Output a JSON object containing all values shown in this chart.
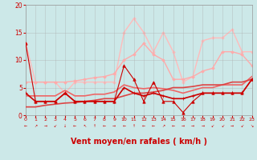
{
  "bg_color": "#cce8e8",
  "grid_color": "#aaaaaa",
  "xlabel": "Vent moyen/en rafales ( km/h )",
  "xlabel_color": "#cc0000",
  "xlabel_fontsize": 7,
  "ytick_color": "#cc0000",
  "xtick_color": "#cc0000",
  "xlim": [
    0,
    23
  ],
  "ylim": [
    0,
    20
  ],
  "yticks": [
    0,
    5,
    10,
    15,
    20
  ],
  "xticks": [
    0,
    1,
    2,
    3,
    4,
    5,
    6,
    7,
    8,
    9,
    10,
    11,
    12,
    13,
    14,
    15,
    16,
    17,
    18,
    19,
    20,
    21,
    22,
    23
  ],
  "lines": [
    {
      "comment": "dark red jagged line with triangle markers - avg wind speed",
      "x": [
        0,
        1,
        2,
        3,
        4,
        5,
        6,
        7,
        8,
        9,
        10,
        11,
        12,
        13,
        14,
        15,
        16,
        17,
        18,
        19,
        20,
        21,
        22,
        23
      ],
      "y": [
        13,
        2.5,
        2.5,
        2.5,
        4,
        2.5,
        2.5,
        2.5,
        2.5,
        2.5,
        9,
        6.5,
        2.5,
        6,
        2.5,
        2.5,
        0.5,
        2.5,
        4,
        4,
        4,
        4,
        4,
        6.5
      ],
      "color": "#cc0000",
      "lw": 0.8,
      "marker": "^",
      "ms": 2.5,
      "zorder": 6
    },
    {
      "comment": "dark red smoother with cross markers",
      "x": [
        0,
        1,
        2,
        3,
        4,
        5,
        6,
        7,
        8,
        9,
        10,
        11,
        12,
        13,
        14,
        15,
        16,
        17,
        18,
        19,
        20,
        21,
        22,
        23
      ],
      "y": [
        4,
        2.5,
        2.5,
        2.5,
        4,
        2.5,
        2.5,
        2.5,
        2.5,
        2.5,
        5,
        4,
        3.5,
        4,
        3.5,
        3,
        3,
        3.5,
        4,
        4,
        4,
        4,
        4,
        6.5
      ],
      "color": "#cc0000",
      "lw": 1.2,
      "marker": "+",
      "ms": 3,
      "zorder": 5
    },
    {
      "comment": "medium red diagonal trend line - no marker",
      "x": [
        0,
        1,
        2,
        3,
        4,
        5,
        6,
        7,
        8,
        9,
        10,
        11,
        12,
        13,
        14,
        15,
        16,
        17,
        18,
        19,
        20,
        21,
        22,
        23
      ],
      "y": [
        1.5,
        1.5,
        1.8,
        2.0,
        2.2,
        2.3,
        2.5,
        2.7,
        3.0,
        3.0,
        3.5,
        4.0,
        4.0,
        4.2,
        4.5,
        5.0,
        5.0,
        5.2,
        5.5,
        5.5,
        5.5,
        6.0,
        6.0,
        6.5
      ],
      "color": "#dd4444",
      "lw": 1.2,
      "marker": null,
      "ms": 0,
      "zorder": 3
    },
    {
      "comment": "medium red slightly higher diagonal trend line - no marker",
      "x": [
        0,
        1,
        2,
        3,
        4,
        5,
        6,
        7,
        8,
        9,
        10,
        11,
        12,
        13,
        14,
        15,
        16,
        17,
        18,
        19,
        20,
        21,
        22,
        23
      ],
      "y": [
        3.5,
        3.5,
        3.5,
        3.5,
        4.5,
        3.5,
        3.5,
        3.8,
        3.8,
        4.2,
        5.5,
        5.0,
        4.8,
        5.0,
        4.8,
        4.5,
        4.0,
        4.5,
        5.0,
        5.0,
        5.5,
        5.5,
        5.5,
        7.0
      ],
      "color": "#ee6666",
      "lw": 1.2,
      "marker": null,
      "ms": 0,
      "zorder": 2
    },
    {
      "comment": "light pink lower diagonal - no marker",
      "x": [
        0,
        1,
        2,
        3,
        4,
        5,
        6,
        7,
        8,
        9,
        10,
        11,
        12,
        13,
        14,
        15,
        16,
        17,
        18,
        19,
        20,
        21,
        22,
        23
      ],
      "y": [
        6,
        6,
        6,
        6,
        6,
        6.2,
        6.5,
        6.8,
        7.0,
        7.5,
        10,
        11,
        13,
        11,
        10,
        6.5,
        6.5,
        7,
        8,
        8.5,
        11.5,
        11.5,
        11.0,
        9.0
      ],
      "color": "#ffaaaa",
      "lw": 1.0,
      "marker": "D",
      "ms": 1.8,
      "zorder": 2
    },
    {
      "comment": "light pink upper jagged line",
      "x": [
        0,
        1,
        2,
        3,
        4,
        5,
        6,
        7,
        8,
        9,
        10,
        11,
        12,
        13,
        14,
        15,
        16,
        17,
        18,
        19,
        20,
        21,
        22,
        23
      ],
      "y": [
        13,
        6,
        6,
        6,
        4,
        6,
        6,
        6,
        6,
        6,
        15,
        17.5,
        15,
        11.5,
        15,
        11.5,
        6,
        7,
        13.5,
        14,
        14,
        15.5,
        11.5,
        11.5
      ],
      "color": "#ffbbbb",
      "lw": 1.0,
      "marker": "D",
      "ms": 1.8,
      "zorder": 1
    }
  ],
  "wind_arrows": [
    "←",
    "↗",
    "→",
    "↙",
    "↓",
    "←",
    "↖",
    "↑",
    "←",
    "→",
    "←",
    "↑",
    "←",
    "←",
    "↗",
    "←",
    "→",
    "→",
    "→",
    "↙",
    "↙",
    "→",
    "↙",
    "↘"
  ]
}
